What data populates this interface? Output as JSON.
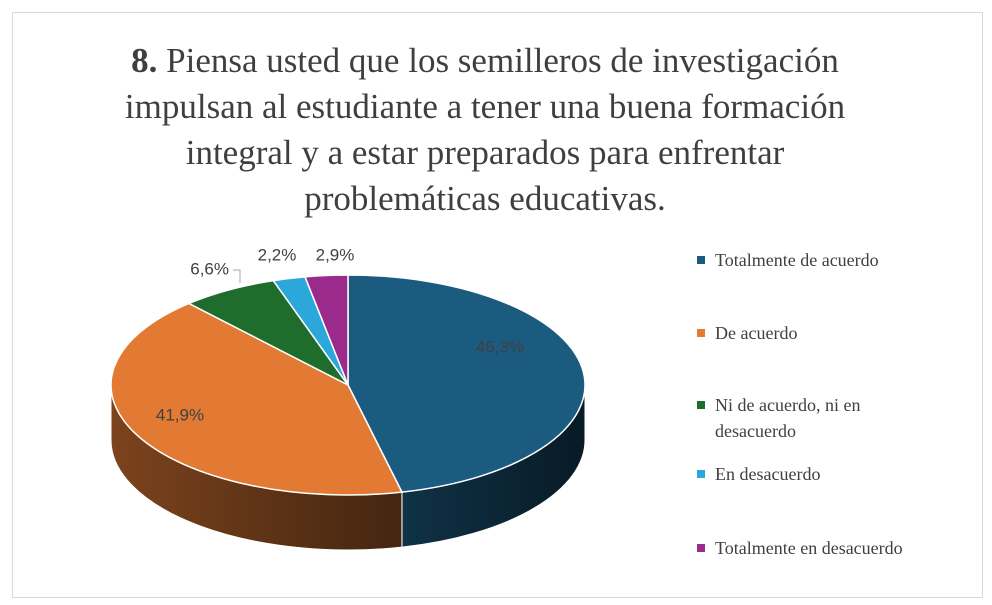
{
  "chart_data": {
    "type": "pie3d",
    "title": "8. Piensa usted que los semilleros de investigación impulsan al estudiante a tener una buena formación integral y a estar preparados para enfrentar problemáticas educativas.",
    "categories": [
      "Totalmente de acuerdo",
      "De acuerdo",
      "Ni de acuerdo, ni en desacuerdo",
      "En desacuerdo",
      "Totalmente en desacuerdo"
    ],
    "values": [
      46.3,
      41.9,
      6.6,
      2.2,
      2.9
    ],
    "value_labels": [
      "46,3%",
      "41,9%",
      "6,6%",
      "2,2%",
      "2,9%"
    ],
    "colors": [
      "#1b5b80",
      "#e27a34",
      "#1f6d2d",
      "#2ba7d9",
      "#9a2a8b"
    ],
    "legend": "right"
  }
}
